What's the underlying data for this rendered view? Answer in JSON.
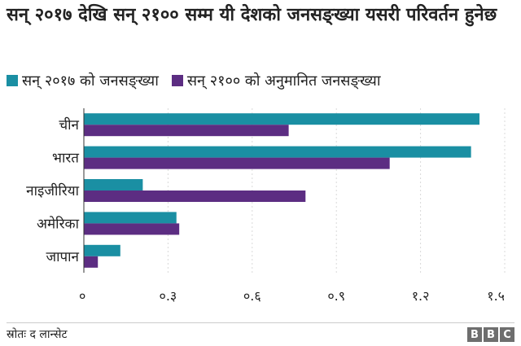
{
  "title": "सन् २०१७ देखि सन् २१०० सम्म यी देशको जनसङ्ख्या यसरी परिवर्तन हुनेछ",
  "source": "स्रोतः द लान्सेट",
  "brand": [
    "B",
    "B",
    "C"
  ],
  "colors": {
    "series2017": "#1a8fa3",
    "series2100": "#5c2d82",
    "grid": "#d9d9d9"
  },
  "chart_data": {
    "type": "bar",
    "orientation": "horizontal",
    "title": "सन् २०१७ देखि सन् २१०० सम्म यी देशको जनसङ्ख्या यसरी परिवर्तन हुनेछ",
    "categories": [
      "चीन",
      "भारत",
      "नाइजीरिया",
      "अमेरिका",
      "जापान"
    ],
    "series": [
      {
        "name": "सन् २०१७ को जनसङ्ख्या",
        "color": "#1a8fa3",
        "values": [
          1.41,
          1.38,
          0.21,
          0.33,
          0.13
        ]
      },
      {
        "name": "सन् २१०० को अनुमानित जनसङ्ख्या",
        "color": "#5c2d82",
        "values": [
          0.73,
          1.09,
          0.79,
          0.34,
          0.05
        ]
      }
    ],
    "xlim": [
      0,
      1.5
    ],
    "xticks": [
      0,
      0.3,
      0.6,
      0.9,
      1.2,
      1.5
    ],
    "xtick_labels": [
      "०",
      "०.३",
      "०.६",
      "०.९",
      "१.२",
      "१.५"
    ],
    "legend": "top-left",
    "grid": true
  }
}
